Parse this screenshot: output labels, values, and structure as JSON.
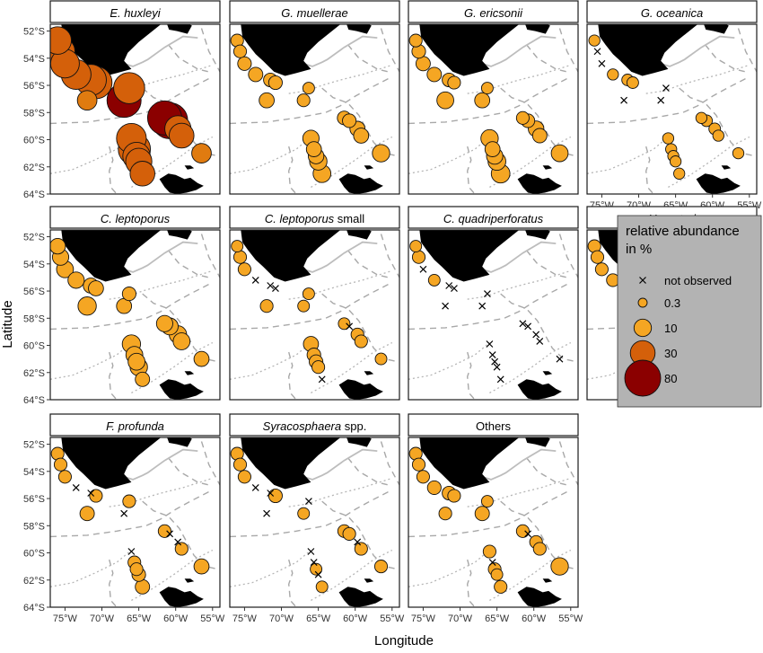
{
  "figure": {
    "ylabel": "Latitude",
    "xlabel": "Longitude"
  },
  "legend": {
    "title_line1": "relative abundance",
    "title_line2": "in %",
    "items": [
      {
        "label": "not observed",
        "kind": "cross"
      },
      {
        "label": "0.3",
        "value": 0.3
      },
      {
        "label": "10",
        "value": 10
      },
      {
        "label": "30",
        "value": 30
      },
      {
        "label": "80",
        "value": 80
      }
    ]
  },
  "axes": {
    "y_ticks": [
      "52°S",
      "54°S",
      "56°S",
      "58°S",
      "60°S",
      "62°S",
      "64°S"
    ],
    "x_ticks": [
      "75°W",
      "70°W",
      "65°W",
      "60°W",
      "55°W"
    ]
  },
  "chart_data": {
    "type": "scatter",
    "description_of_encoding": "",
    "xlim": [
      -77,
      -54
    ],
    "ylim": [
      -64,
      -51.5
    ],
    "colors": {
      "low": "#F5A623",
      "mid": "#D4600A",
      "high": "#8B0000"
    },
    "stations": [
      {
        "lon": -76.0,
        "lat": -52.7
      },
      {
        "lon": -75.6,
        "lat": -53.5
      },
      {
        "lon": -75.0,
        "lat": -54.4
      },
      {
        "lon": -73.5,
        "lat": -55.2
      },
      {
        "lon": -71.5,
        "lat": -55.6
      },
      {
        "lon": -70.8,
        "lat": -55.8
      },
      {
        "lon": -72.0,
        "lat": -57.1
      },
      {
        "lon": -67.0,
        "lat": -57.1
      },
      {
        "lon": -66.3,
        "lat": -56.2
      },
      {
        "lon": -61.5,
        "lat": -58.4
      },
      {
        "lon": -60.8,
        "lat": -58.6
      },
      {
        "lon": -59.7,
        "lat": -59.2
      },
      {
        "lon": -59.2,
        "lat": -59.7
      },
      {
        "lon": -66.0,
        "lat": -59.9
      },
      {
        "lon": -65.6,
        "lat": -60.7
      },
      {
        "lon": -65.3,
        "lat": -61.2
      },
      {
        "lon": -65.0,
        "lat": -61.6
      },
      {
        "lon": -64.5,
        "lat": -62.5
      },
      {
        "lon": -56.5,
        "lat": -61.0
      }
    ],
    "panels": [
      {
        "title_italic": "E. huxleyi",
        "title_plain": "",
        "values": [
          40,
          45,
          45,
          50,
          55,
          60,
          15,
          70,
          55,
          70,
          80,
          35,
          30,
          50,
          60,
          40,
          35,
          30,
          15
        ]
      },
      {
        "title_italic": "G. muellerae",
        "title_plain": "",
        "values": [
          3,
          3,
          4,
          5,
          4,
          4,
          6,
          3,
          2,
          4,
          4,
          6,
          6,
          8,
          6,
          7,
          10,
          11,
          10
        ]
      },
      {
        "title_italic": "G. ericsonii",
        "title_plain": "",
        "values": [
          3,
          4,
          5,
          5,
          4,
          3,
          9,
          6,
          2,
          3,
          4,
          7,
          5,
          10,
          6,
          8,
          11,
          13,
          9
        ]
      },
      {
        "title_italic": "G. oceanica",
        "title_plain": "",
        "values": [
          1.5,
          0,
          0,
          1.5,
          2,
          2,
          0,
          0,
          0,
          1.5,
          2,
          2,
          1.5,
          1.5,
          1.5,
          1.5,
          1.5,
          1.5,
          1.5
        ]
      },
      {
        "title_italic": "C. leptoporus",
        "title_plain": "",
        "values": [
          7,
          8,
          9,
          8,
          6,
          6,
          12,
          6,
          4,
          8,
          9,
          10,
          9,
          12,
          9,
          9,
          10,
          5,
          6
        ]
      },
      {
        "title_italic": "C. leptoporus",
        "title_plain": " small",
        "values": [
          2,
          3,
          3,
          0,
          0,
          0,
          3,
          2,
          2,
          2,
          0,
          3,
          3,
          6,
          4,
          4,
          3,
          0,
          2
        ]
      },
      {
        "title_italic": "C. quadriperforatus",
        "title_plain": "",
        "values": [
          2,
          3,
          0,
          2,
          0,
          0,
          0,
          0,
          0,
          0,
          0,
          0,
          0,
          0,
          0,
          0,
          0,
          0,
          0
        ]
      },
      {
        "title_italic": "H. carteri",
        "title_plain": "",
        "values": [
          3,
          3,
          3,
          3,
          2.5,
          2,
          0,
          2.5,
          2,
          2,
          3,
          3,
          3,
          0,
          0,
          2,
          2,
          0,
          2
        ]
      },
      {
        "title_italic": "F. profunda",
        "title_plain": "",
        "values": [
          3,
          3,
          3,
          0,
          0,
          3,
          5,
          0,
          3,
          3,
          0,
          0,
          3,
          0,
          3,
          3,
          4,
          5,
          6
        ]
      },
      {
        "title_italic": "Syracosphaera",
        "title_plain": " spp.",
        "values": [
          3,
          3,
          3,
          0,
          0,
          4,
          0,
          2,
          0,
          3,
          3,
          0,
          3,
          0,
          0,
          2,
          0,
          2,
          3
        ]
      },
      {
        "title_italic": "",
        "title_plain": "Others",
        "values": [
          3,
          3,
          3,
          4,
          4,
          3,
          3,
          5,
          2,
          3,
          0,
          3,
          3,
          3,
          0,
          3,
          2,
          3,
          10
        ]
      }
    ]
  }
}
